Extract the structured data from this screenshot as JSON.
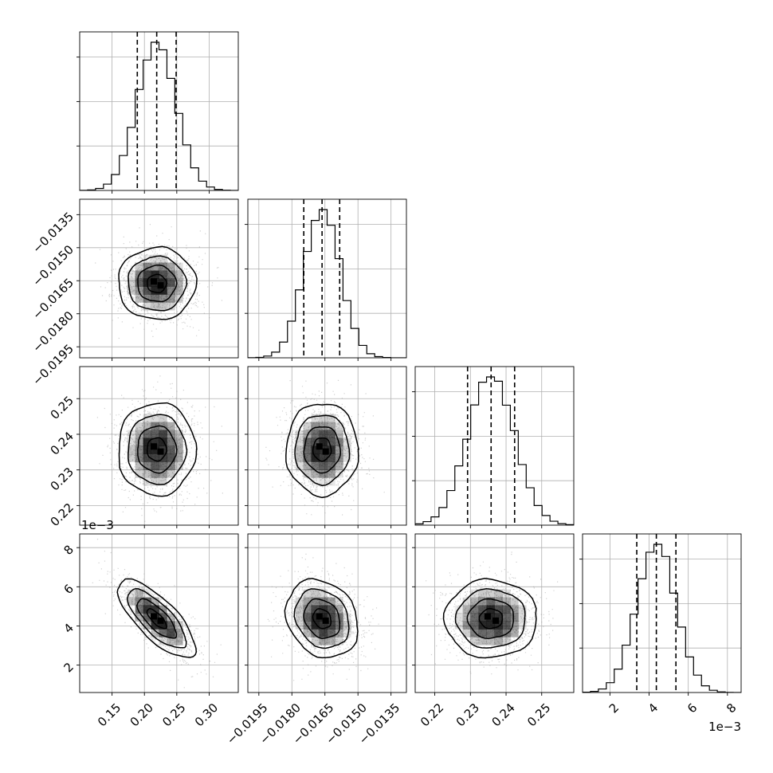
{
  "chart_data": {
    "type": "corner",
    "description": "Corner plot of 4 parameters: 1D histograms on the diagonal with 16/50/84% quantile dashed lines; 2D density (grayscale histogram, scatter points, contours) below the diagonal.",
    "parameters": [
      {
        "index": 0,
        "range": [
          0.1,
          0.345
        ],
        "ticks": [
          0.15,
          0.2,
          0.25,
          0.3
        ],
        "tick_labels": [
          "0.15",
          "0.20",
          "0.25",
          "0.30"
        ],
        "offset_label": "",
        "mean": 0.219,
        "sigma": 0.03,
        "quantiles": {
          "q16": 0.189,
          "q50": 0.219,
          "q84": 0.249
        }
      },
      {
        "index": 1,
        "range": [
          -0.02,
          -0.0128
        ],
        "ticks": [
          -0.0195,
          -0.018,
          -0.0165,
          -0.015,
          -0.0135
        ],
        "tick_labels": [
          "−0.0195",
          "−0.0180",
          "−0.0165",
          "−0.0150",
          "−0.0135"
        ],
        "offset_label": "",
        "mean": -0.01663,
        "sigma": 0.00082,
        "quantiles": {
          "q16": -0.01746,
          "q50": -0.01663,
          "q84": -0.01583
        }
      },
      {
        "index": 2,
        "range": [
          0.2145,
          0.259
        ],
        "ticks": [
          0.22,
          0.23,
          0.24,
          0.25
        ],
        "tick_labels": [
          "0.22",
          "0.23",
          "0.24",
          "0.25"
        ],
        "offset_label": "",
        "mean": 0.2358,
        "sigma": 0.0065,
        "quantiles": {
          "q16": 0.2292,
          "q50": 0.2358,
          "q84": 0.2424
        }
      },
      {
        "index": 3,
        "range": [
          0.6,
          8.7
        ],
        "ticks": [
          2,
          4,
          6,
          8
        ],
        "tick_labels": [
          "2",
          "4",
          "6",
          "8"
        ],
        "offset_label": "1e−3",
        "mean": 4.37,
        "sigma": 1.0,
        "quantiles": {
          "q16": 3.37,
          "q50": 4.37,
          "q84": 5.37
        }
      }
    ],
    "correlations": [
      {
        "pair": [
          1,
          0
        ],
        "rho": 0.0
      },
      {
        "pair": [
          2,
          0
        ],
        "rho": 0.0
      },
      {
        "pair": [
          2,
          1
        ],
        "rho": 0.0
      },
      {
        "pair": [
          3,
          0
        ],
        "rho": -0.75
      },
      {
        "pair": [
          3,
          1
        ],
        "rho": -0.2
      },
      {
        "pair": [
          3,
          2
        ],
        "rho": 0.0
      }
    ],
    "grid": true,
    "colors": {
      "points": "#9a9a9a",
      "density": "#000000",
      "lines": "#000000",
      "grid": "#b0b0b0"
    }
  }
}
